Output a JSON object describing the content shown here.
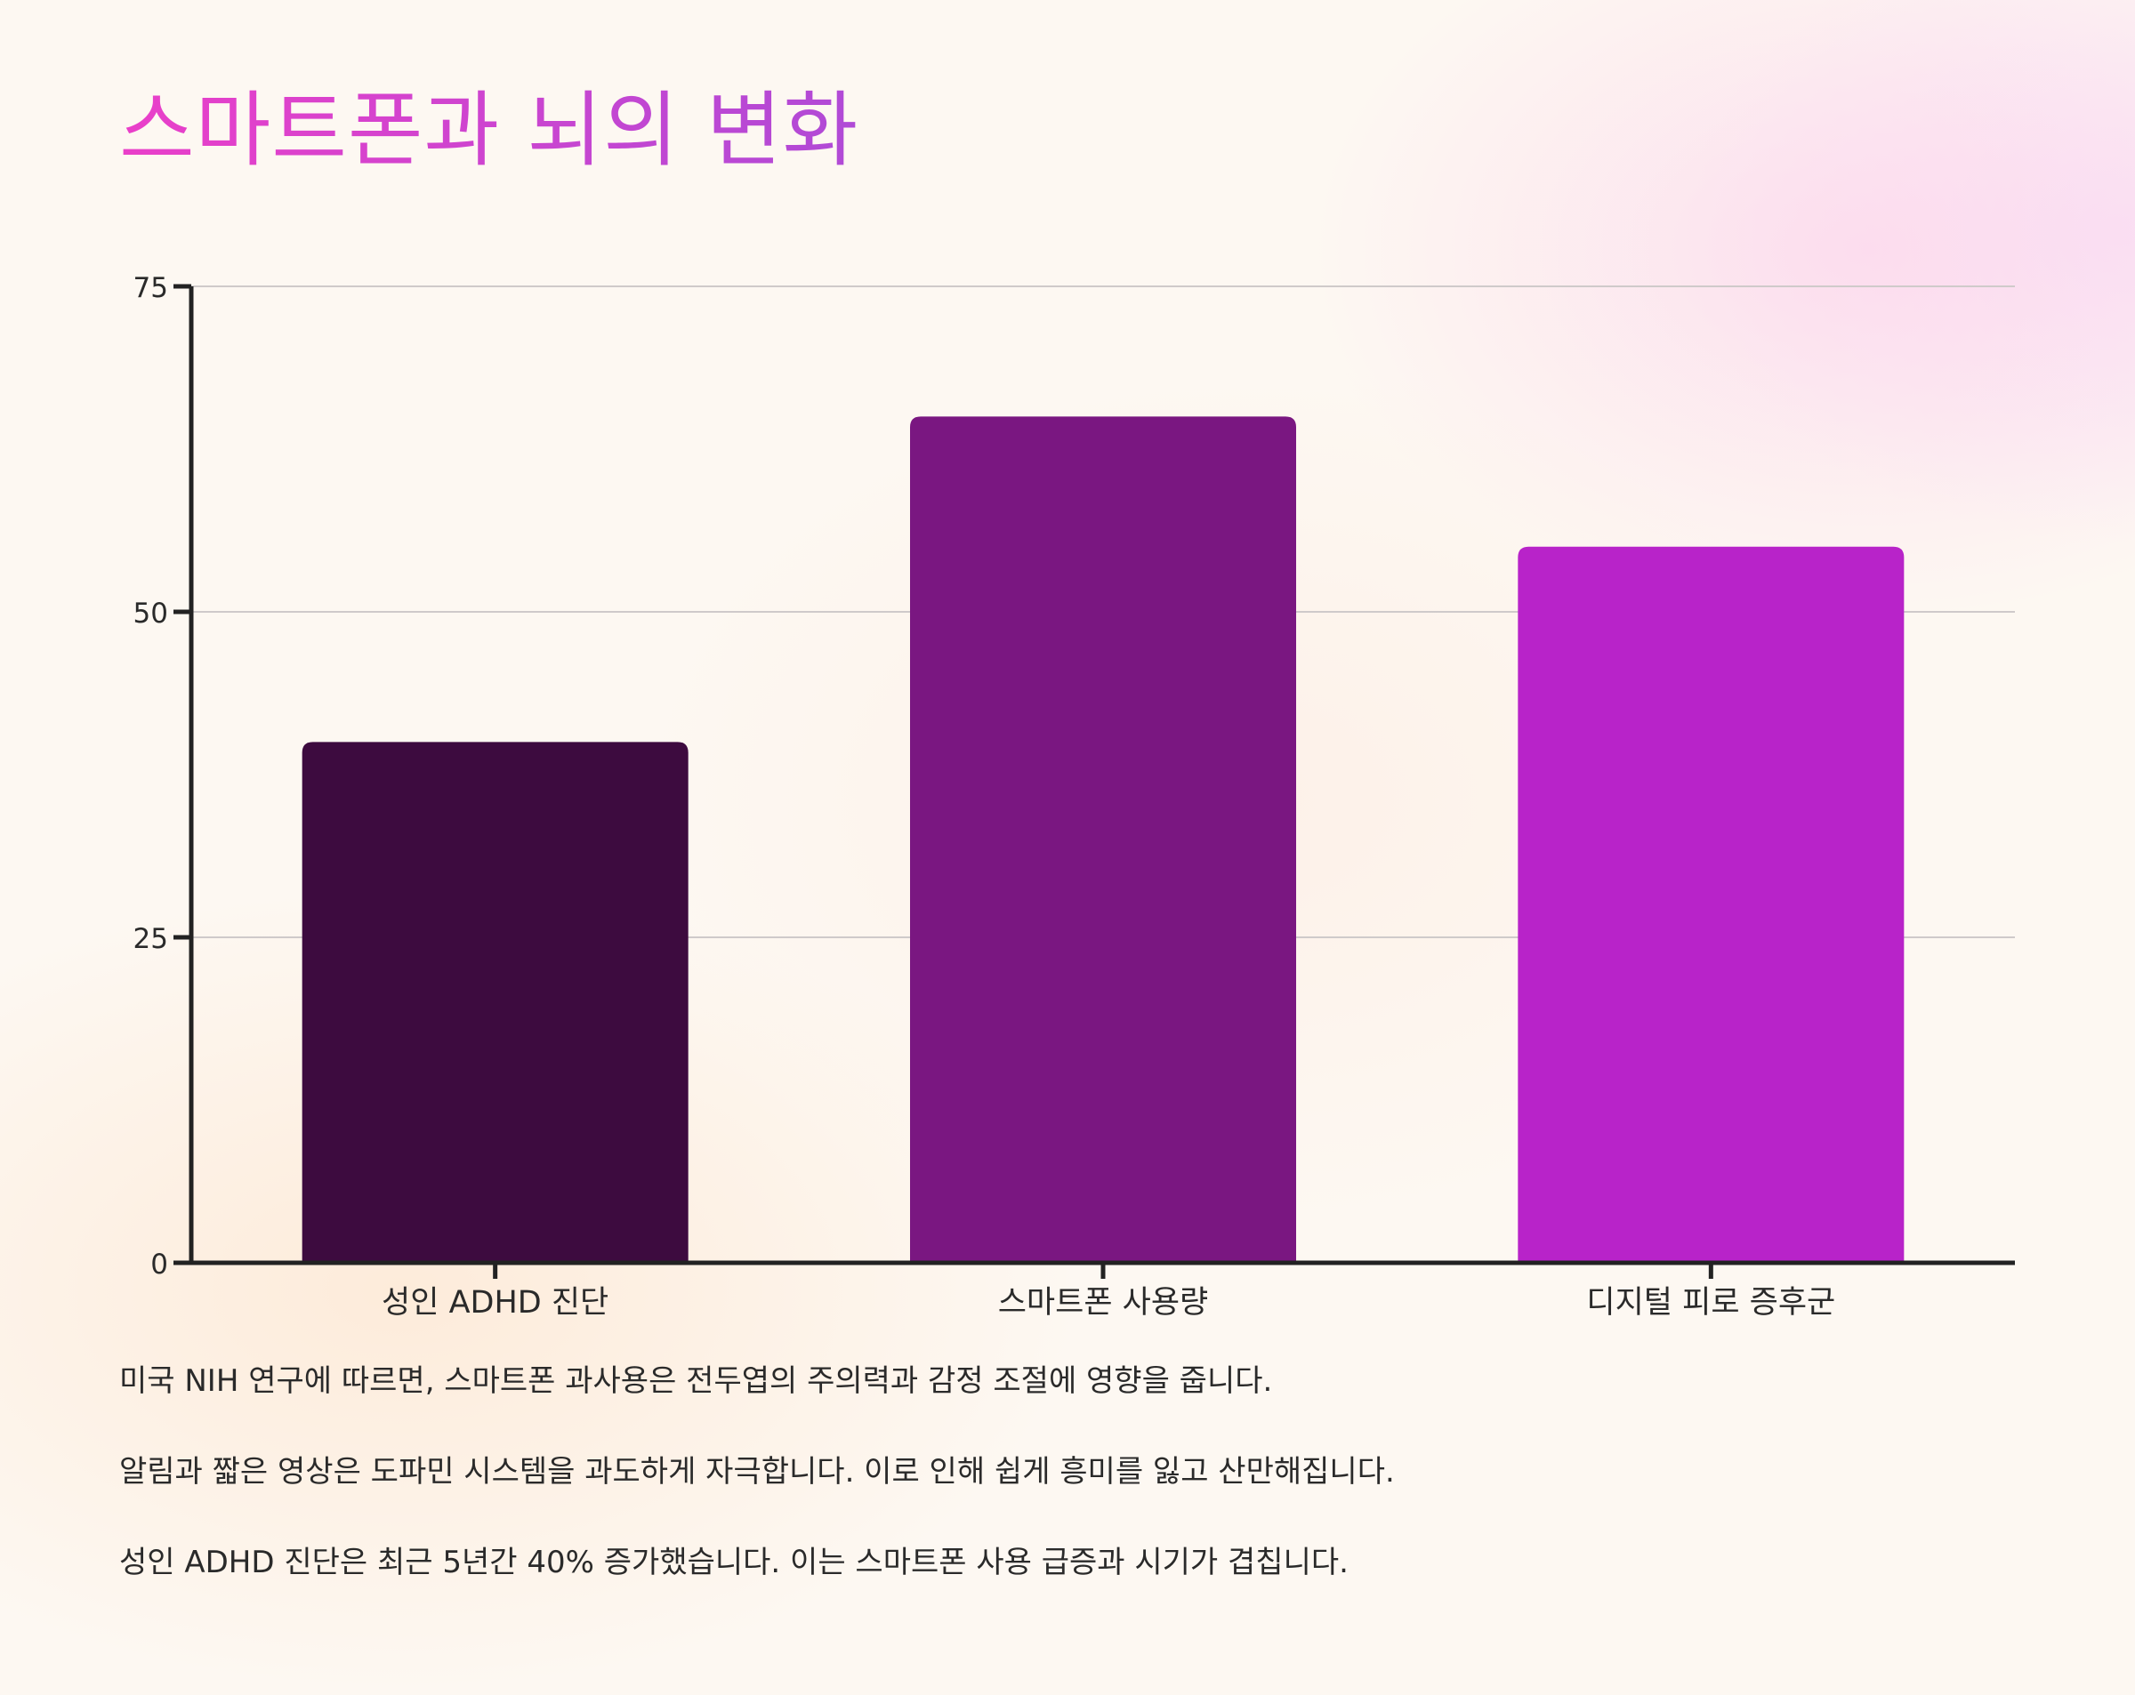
{
  "title": "스마트폰과 뇌의 변화",
  "colors": {
    "title_start": "#ea3fc9",
    "title_end": "#b04ad6",
    "axis": "#222222",
    "grid": "#cfcaca",
    "text": "#2a2a2a"
  },
  "chart_data": {
    "type": "bar",
    "categories": [
      "성인 ADHD 진단",
      "스마트폰 사용량",
      "디지털 피로 증후군"
    ],
    "values": [
      40,
      65,
      55
    ],
    "bar_colors": [
      "#3d0b3f",
      "#7a1781",
      "#b823c9"
    ],
    "ylim": [
      0,
      75
    ],
    "yticks": [
      0,
      25,
      50,
      75
    ],
    "grid": true,
    "xlabel": "",
    "ylabel": ""
  },
  "notes": [
    "미국 NIH 연구에 따르면, 스마트폰 과사용은 전두엽의 주의력과 감정 조절에 영향을 줍니다.",
    "알림과 짧은 영상은 도파민 시스템을 과도하게 자극합니다. 이로 인해 쉽게 흥미를 잃고 산만해집니다.",
    "성인 ADHD 진단은 최근 5년간 40% 증가했습니다. 이는 스마트폰 사용 급증과 시기가 겹칩니다."
  ]
}
